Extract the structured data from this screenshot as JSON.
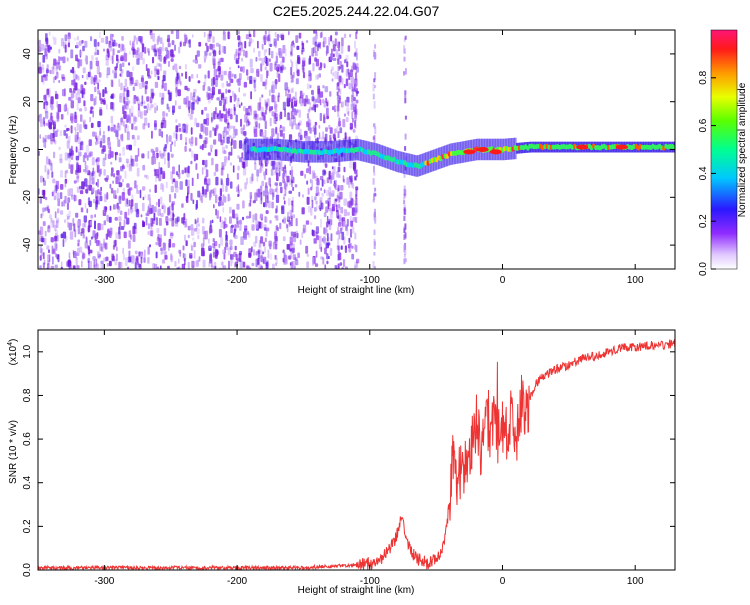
{
  "title": "C2E5.2025.244.22.04.G07",
  "chart_data": [
    {
      "type": "heatmap",
      "xlabel": "Height of straight line (km)",
      "ylabel": "Frequency (Hz)",
      "xlim": [
        -350,
        130
      ],
      "ylim": [
        -50,
        50
      ],
      "xticks": [
        -300,
        -200,
        -100,
        0,
        100
      ],
      "yticks": [
        -40,
        -20,
        0,
        20,
        40
      ],
      "ridge": {
        "x": [
          -190,
          -170,
          -150,
          -130,
          -110,
          -95,
          -80,
          -65,
          -55,
          -40,
          -20,
          0,
          20,
          60,
          100,
          130
        ],
        "freq": [
          0,
          0,
          -1,
          -1,
          0,
          -2,
          -5,
          -7,
          -5,
          -2,
          0,
          0,
          1,
          1,
          1,
          1
        ]
      },
      "colorbar": {
        "label": "Normalized spectral amplitude",
        "range": [
          0,
          1
        ],
        "ticks": [
          "0.0",
          "0.2",
          "0.4",
          "0.6",
          "0.8"
        ],
        "tick_values": [
          0,
          0.2,
          0.4,
          0.6,
          0.8
        ]
      }
    },
    {
      "type": "line",
      "xlabel": "Height of straight line (km)",
      "ylabel": "SNR (10 * v/v)",
      "scale_note": "(x10",
      "scale_exp": "4",
      "scale_close": ")",
      "xlim": [
        -350,
        130
      ],
      "ylim": [
        0,
        1.1
      ],
      "xticks": [
        -300,
        -200,
        -100,
        0,
        100
      ],
      "yticks": [
        "0.0",
        "0.2",
        "0.4",
        "0.6",
        "0.8",
        "1.0"
      ],
      "ytick_values": [
        0,
        0.2,
        0.4,
        0.6,
        0.8,
        1.0
      ],
      "color": "#ee3333",
      "series": [
        {
          "name": "SNR",
          "x": [
            -350,
            -300,
            -250,
            -200,
            -150,
            -120,
            -100,
            -90,
            -85,
            -80,
            -76,
            -72,
            -68,
            -64,
            -60,
            -56,
            -52,
            -48,
            -44,
            -40,
            -37,
            -34,
            -31,
            -28,
            -25,
            -22,
            -19,
            -16,
            -13,
            -10,
            -7,
            -4,
            -1,
            2,
            5,
            8,
            11,
            14,
            17,
            20,
            25,
            30,
            40,
            50,
            60,
            70,
            80,
            90,
            100,
            110,
            120,
            130
          ],
          "y": [
            0.01,
            0.01,
            0.01,
            0.01,
            0.01,
            0.02,
            0.03,
            0.06,
            0.1,
            0.15,
            0.26,
            0.14,
            0.08,
            0.05,
            0.04,
            0.03,
            0.05,
            0.07,
            0.12,
            0.3,
            0.55,
            0.42,
            0.45,
            0.48,
            0.52,
            0.6,
            0.7,
            0.55,
            0.75,
            0.65,
            0.68,
            0.6,
            0.7,
            0.58,
            0.7,
            0.68,
            0.6,
            0.76,
            0.72,
            0.78,
            0.85,
            0.89,
            0.92,
            0.94,
            0.97,
            0.98,
            1.0,
            1.02,
            1.02,
            1.03,
            1.03,
            1.04
          ]
        }
      ]
    }
  ]
}
